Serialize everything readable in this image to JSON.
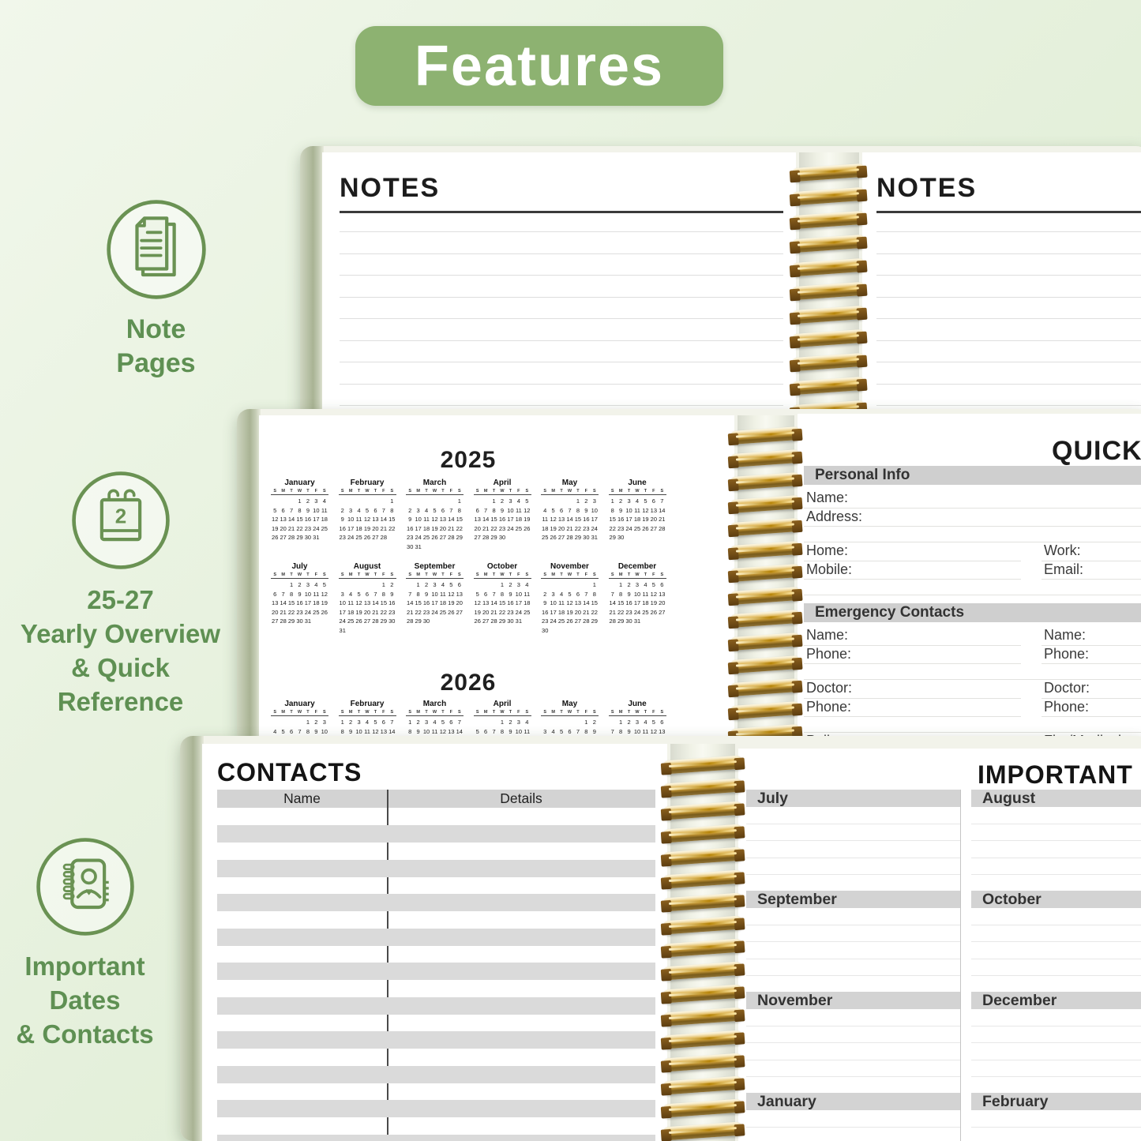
{
  "banner": {
    "title": "Features",
    "bg_color": "#8db271",
    "text_color": "#ffffff"
  },
  "sidebar": {
    "text_color": "#5f9053",
    "items": [
      {
        "id": "note-pages",
        "icon": "note-pages-icon",
        "label_lines": [
          "Note Pages"
        ]
      },
      {
        "id": "yearly-overview",
        "icon": "calendar-icon",
        "icon_number": "2",
        "label_lines": [
          "25-27",
          "Yearly Overview",
          "& Quick",
          "Reference"
        ]
      },
      {
        "id": "important-dates",
        "icon": "contact-book-icon",
        "label_lines": [
          "Important",
          "Dates",
          "& Contacts"
        ]
      }
    ]
  },
  "notes_spread": {
    "left_page_title": "NOTES",
    "right_page_title": "NOTES"
  },
  "calendar_page": {
    "weekday_letters": [
      "S",
      "M",
      "T",
      "W",
      "T",
      "F",
      "S"
    ],
    "years": [
      {
        "year": "2025",
        "month_rows": [
          [
            {
              "name": "January",
              "start": 3,
              "days": 31
            },
            {
              "name": "February",
              "start": 6,
              "days": 28
            },
            {
              "name": "March",
              "start": 6,
              "days": 31
            },
            {
              "name": "April",
              "start": 2,
              "days": 30
            },
            {
              "name": "May",
              "start": 4,
              "days": 31
            },
            {
              "name": "June",
              "start": 0,
              "days": 30
            }
          ],
          [
            {
              "name": "July",
              "start": 2,
              "days": 31
            },
            {
              "name": "August",
              "start": 5,
              "days": 31
            },
            {
              "name": "September",
              "start": 1,
              "days": 30
            },
            {
              "name": "October",
              "start": 3,
              "days": 31
            },
            {
              "name": "November",
              "start": 6,
              "days": 30
            },
            {
              "name": "December",
              "start": 1,
              "days": 31
            }
          ]
        ]
      },
      {
        "year": "2026",
        "month_rows": [
          [
            {
              "name": "January",
              "start": 4,
              "days": 31
            },
            {
              "name": "February",
              "start": 0,
              "days": 28
            },
            {
              "name": "March",
              "start": 0,
              "days": 31
            },
            {
              "name": "April",
              "start": 3,
              "days": 30
            },
            {
              "name": "May",
              "start": 5,
              "days": 31
            },
            {
              "name": "June",
              "start": 1,
              "days": 30
            }
          ]
        ]
      }
    ]
  },
  "quick_reference_page": {
    "title": "QUICK REFERENCE",
    "sections": [
      {
        "title": "Personal Info",
        "rows": [
          [
            "Name:"
          ],
          [
            "Address:"
          ],
          [],
          [
            "Home:",
            "Work:"
          ],
          [
            "Mobile:",
            "Email:"
          ],
          []
        ]
      },
      {
        "title": "Emergency Contacts",
        "rows": [
          [
            "Name:",
            "Name:"
          ],
          [
            "Phone:",
            "Phone:"
          ],
          [],
          [
            "Doctor:",
            "Doctor:"
          ],
          [
            "Phone:",
            "Phone:"
          ],
          [],
          [
            "Police:",
            "Fire/Medical:"
          ]
        ]
      }
    ]
  },
  "contacts_page": {
    "title": "CONTACTS",
    "columns": [
      "Name",
      "Details"
    ]
  },
  "important_dates_page": {
    "title": "IMPORTANT DATES",
    "sections": [
      [
        "July",
        "August"
      ],
      [
        "September",
        "October"
      ],
      [
        "November",
        "December"
      ],
      [
        "January",
        "February"
      ]
    ]
  },
  "colors": {
    "accent_green": "#8db271",
    "icon_green": "#6a9253",
    "gold_spiral": "#c9a45a",
    "header_gray": "#d3d3d3",
    "row_gray": "#dadada"
  }
}
